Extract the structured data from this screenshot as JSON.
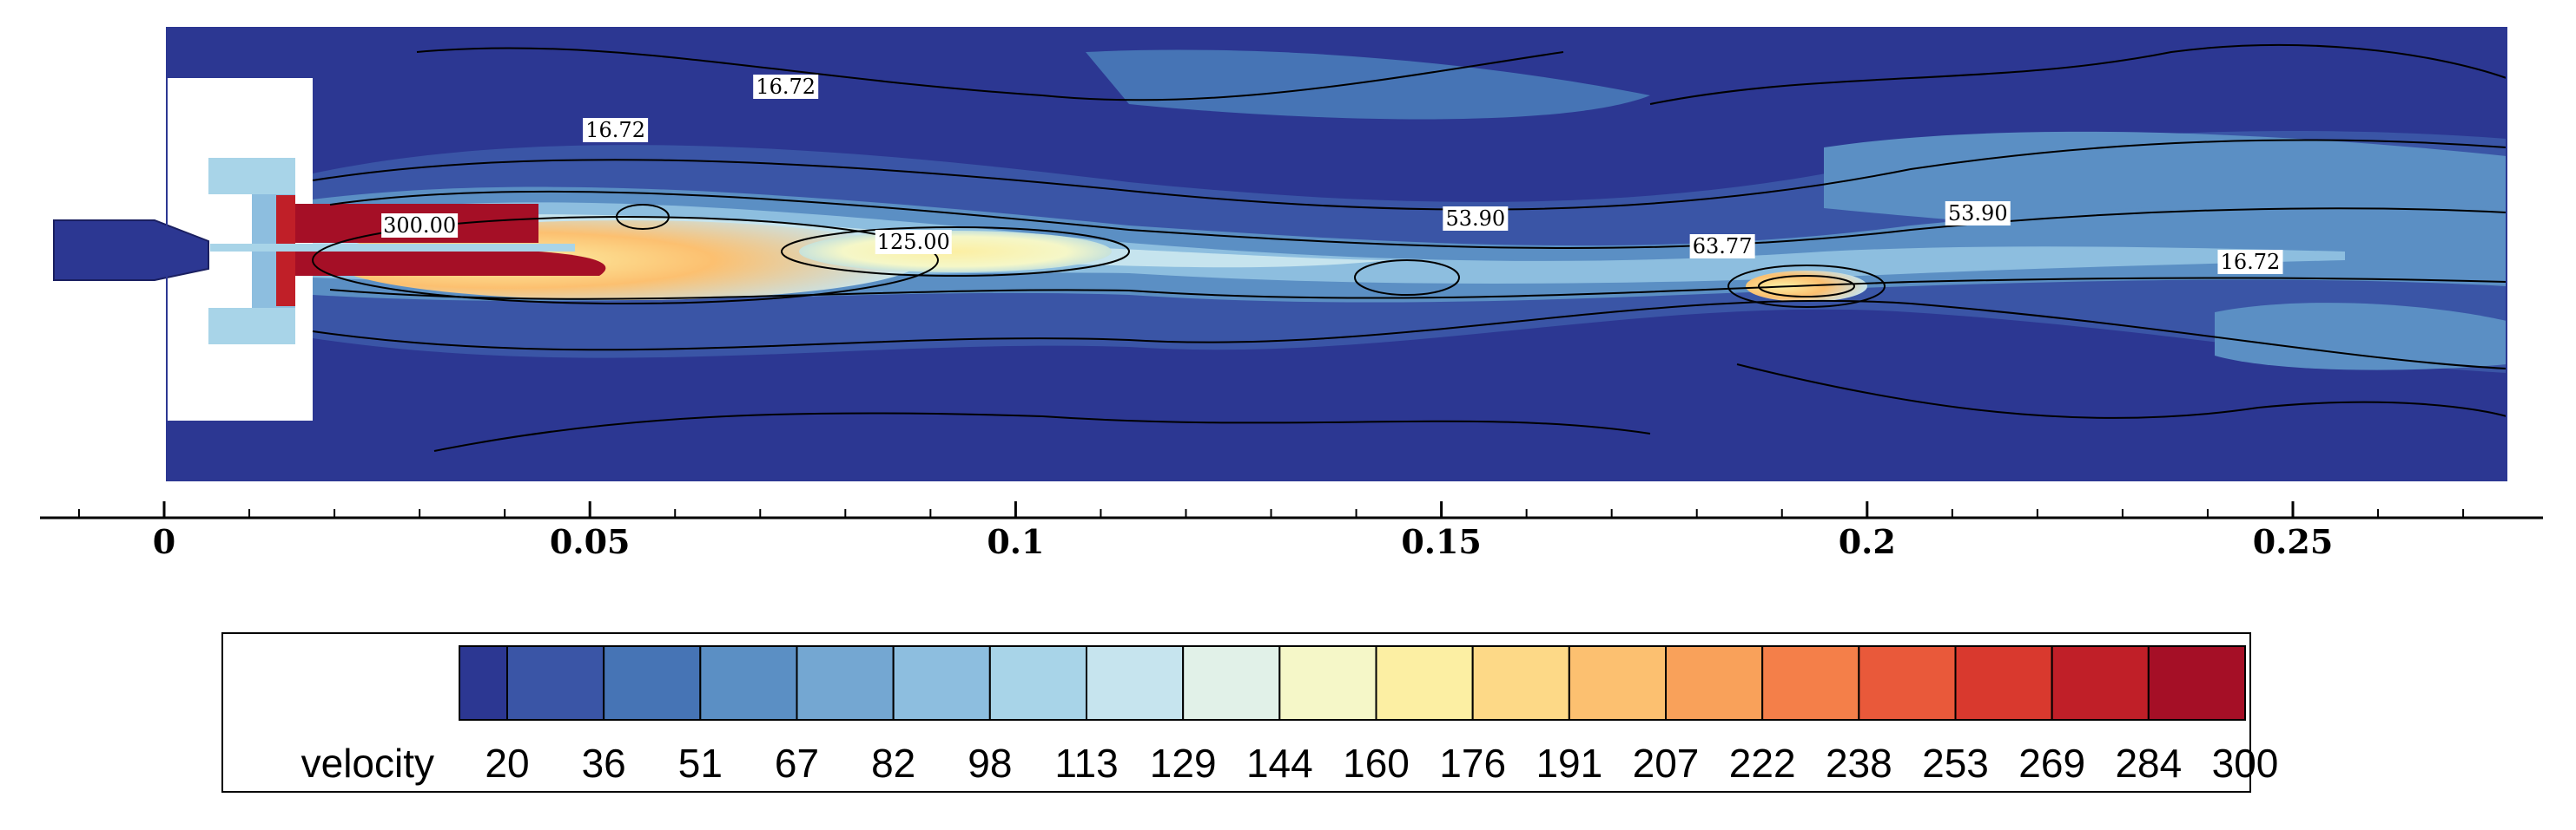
{
  "chart_data": {
    "type": "heatmap",
    "title": "",
    "xlabel": "",
    "ylabel": "",
    "xlim": [
      -0.015,
      0.278
    ],
    "x_ticks": [
      "0",
      "0.05",
      "0.1",
      "0.15",
      "0.2",
      "0.25"
    ],
    "x_tick_values": [
      0,
      0.05,
      0.1,
      0.15,
      0.2,
      0.25
    ],
    "colorbar": {
      "label": "velocity",
      "levels": [
        "20",
        "36",
        "51",
        "67",
        "82",
        "98",
        "113",
        "129",
        "144",
        "160",
        "176",
        "191",
        "207",
        "222",
        "238",
        "253",
        "269",
        "284",
        "300"
      ],
      "colors": [
        "#2c3792",
        "#3a55a6",
        "#4674b5",
        "#5b8fc4",
        "#74a7d2",
        "#8dbedf",
        "#a8d4e8",
        "#c6e4ee",
        "#e1f1e8",
        "#f5f7c8",
        "#fcefa3",
        "#fdd987",
        "#fcc070",
        "#f9a15a",
        "#f47f49",
        "#e9593a",
        "#d9392e",
        "#c01f28",
        "#a50f26"
      ]
    },
    "contour_labels": [
      {
        "text": "16.72",
        "x": 0.073,
        "region": "upper"
      },
      {
        "text": "16.72",
        "x": 0.053,
        "region": "upper"
      },
      {
        "text": "300.00",
        "x": 0.03,
        "region": "jet"
      },
      {
        "text": "125.00",
        "x": 0.088,
        "region": "jet"
      },
      {
        "text": "53.90",
        "x": 0.154,
        "region": "jet"
      },
      {
        "text": "63.77",
        "x": 0.183,
        "region": "jet"
      },
      {
        "text": "53.90",
        "x": 0.213,
        "region": "jet"
      },
      {
        "text": "16.72",
        "x": 0.245,
        "region": "jet"
      }
    ]
  }
}
